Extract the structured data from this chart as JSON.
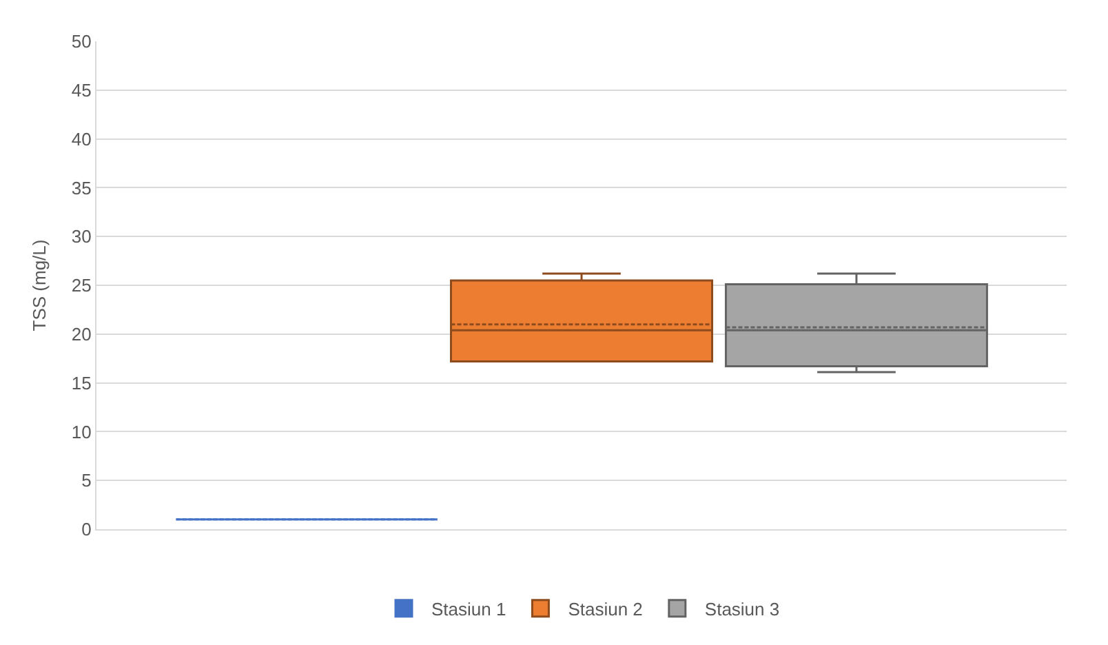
{
  "chart_data": {
    "type": "box",
    "ylabel": "TSS (mg/L)",
    "categories": [
      null
    ],
    "series": [
      {
        "name": "Stasiun 1",
        "color": "#4472c4",
        "boxes": [
          {
            "low": 1,
            "q1": 1,
            "median": 1,
            "q3": 1,
            "high": 1,
            "mean": 1
          }
        ]
      },
      {
        "name": "Stasiun 2",
        "color": "#ed7d31",
        "boxes": [
          {
            "low": 17.2,
            "q1": 17.2,
            "median": 20.4,
            "q3": 25.5,
            "high": 26.2,
            "mean": 21
          }
        ]
      },
      {
        "name": "Stasiun 3",
        "color": "#a5a5a5",
        "boxes": [
          {
            "low": 16.1,
            "q1": 16.7,
            "median": 20.4,
            "q3": 25.1,
            "high": 26.2,
            "mean": 20.7
          }
        ]
      }
    ],
    "ylim": [
      0,
      50
    ],
    "yticks": [
      0,
      5,
      10,
      15,
      20,
      25,
      30,
      35,
      40,
      45,
      50
    ],
    "grid": "y",
    "legend": "bottom"
  }
}
